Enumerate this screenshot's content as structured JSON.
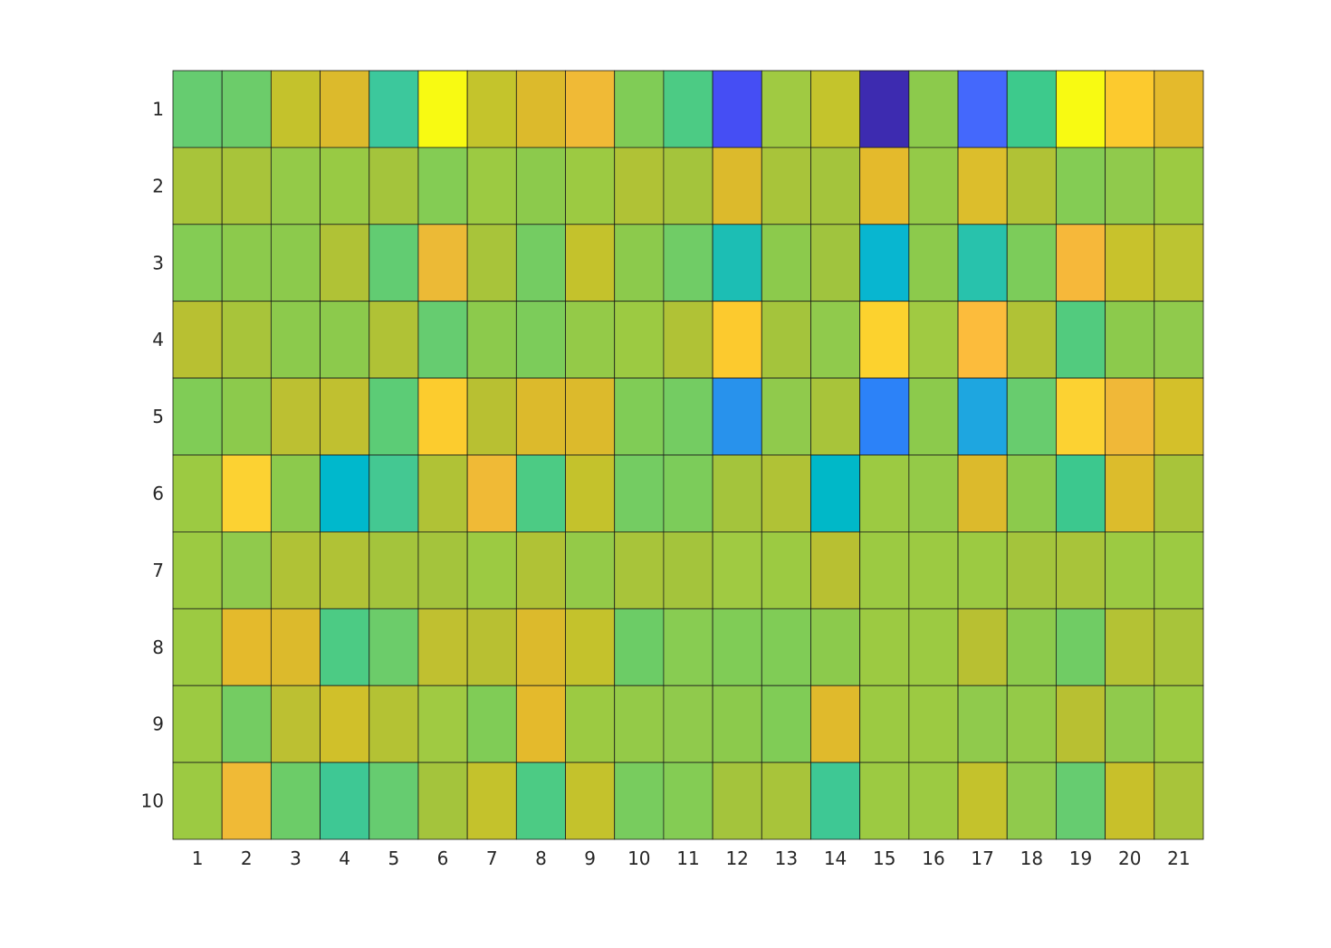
{
  "chart_data": {
    "type": "heatmap",
    "title": "",
    "xlabel": "",
    "ylabel": "",
    "colormap": "parula",
    "x_categories": [
      "1",
      "2",
      "3",
      "4",
      "5",
      "6",
      "7",
      "8",
      "9",
      "10",
      "11",
      "12",
      "13",
      "14",
      "15",
      "16",
      "17",
      "18",
      "19",
      "20",
      "21"
    ],
    "y_categories": [
      "1",
      "2",
      "3",
      "4",
      "5",
      "6",
      "7",
      "8",
      "9",
      "10"
    ],
    "cell_colors": [
      [
        "#66cc70",
        "#6ccc6a",
        "#c4c22c",
        "#dcba2c",
        "#3cc89c",
        "#f8fa12",
        "#c4c42c",
        "#dcba2c",
        "#f0ba36",
        "#80cc56",
        "#4ccb84",
        "#454ef4",
        "#a0ca42",
        "#c4c42c",
        "#3d2bb0",
        "#8cca4c",
        "#4468fc",
        "#3dca8c",
        "#f8fa12",
        "#fcca2e",
        "#e4ba2c"
      ],
      [
        "#a8c43a",
        "#a8c43a",
        "#94ca48",
        "#98ca44",
        "#a4c43c",
        "#84cc54",
        "#9cca42",
        "#8cca4c",
        "#9cca42",
        "#b0c236",
        "#a4c43c",
        "#dcba2c",
        "#a8c43a",
        "#a4c43c",
        "#e4ba2c",
        "#94ca48",
        "#dcbe2c",
        "#b0c236",
        "#84cc54",
        "#90ca4c",
        "#9cca42"
      ],
      [
        "#84cc54",
        "#8cca4c",
        "#8cca4c",
        "#b0c236",
        "#62cc72",
        "#ecba36",
        "#a8c43a",
        "#74cc62",
        "#c4c22c",
        "#8cca4c",
        "#70cc66",
        "#1cbeb4",
        "#8cca4c",
        "#a0c43e",
        "#08b6d0",
        "#8cca4c",
        "#28c2ac",
        "#7ccc5a",
        "#f6b83a",
        "#c8c22c",
        "#bcc432"
      ],
      [
        "#b8c032",
        "#a8c43a",
        "#8cca4c",
        "#8cca4c",
        "#b0c236",
        "#66cc70",
        "#8cca4c",
        "#7ccc5a",
        "#94ca48",
        "#9cca42",
        "#b0c236",
        "#fcca2e",
        "#a4c43c",
        "#90ca4c",
        "#fcd22e",
        "#a0ca42",
        "#fcbc3c",
        "#b0c236",
        "#52cb7e",
        "#8cca4c",
        "#90ca4c"
      ],
      [
        "#80cc56",
        "#8cca4c",
        "#bcc032",
        "#c0c030",
        "#5ccc76",
        "#fccc2e",
        "#b8c032",
        "#dcba2c",
        "#dcba2c",
        "#80cc56",
        "#74cc62",
        "#2892ec",
        "#90ca4c",
        "#a8c43a",
        "#2c82f8",
        "#8cca4c",
        "#1ea6e0",
        "#68cc6e",
        "#fcd232",
        "#f0b838",
        "#d4c02a"
      ],
      [
        "#9cca42",
        "#fcd232",
        "#8cca4c",
        "#00b8cc",
        "#44c892",
        "#b0c236",
        "#f0ba36",
        "#4ccb84",
        "#c4c22c",
        "#74cc62",
        "#7ccc5a",
        "#a4c43c",
        "#b0c236",
        "#00b8c8",
        "#9cca42",
        "#94ca48",
        "#dcba2c",
        "#8cca4c",
        "#3cc88e",
        "#dcbc2c",
        "#a8c43a"
      ],
      [
        "#9cca42",
        "#90ca4c",
        "#b0c236",
        "#b0c236",
        "#a4c43c",
        "#a4c43c",
        "#9cca42",
        "#b0c236",
        "#94ca48",
        "#a8c43a",
        "#a4c43c",
        "#a0ca42",
        "#9cca42",
        "#b8c032",
        "#9cca42",
        "#9cca42",
        "#9cca42",
        "#a4c43c",
        "#a8c43a",
        "#9cca42",
        "#9cca42"
      ],
      [
        "#9cca42",
        "#e4ba2c",
        "#dcba2c",
        "#4ccb84",
        "#6ccc6a",
        "#c0c030",
        "#b8c032",
        "#dcba2c",
        "#c4c22c",
        "#6ccc66",
        "#88cc52",
        "#80cc56",
        "#80cc56",
        "#8cca4c",
        "#9cca42",
        "#9cca42",
        "#b8c032",
        "#8cca4c",
        "#70cc64",
        "#b4c234",
        "#a8c43a"
      ],
      [
        "#9cca42",
        "#74cc62",
        "#bcc032",
        "#d0c02a",
        "#b4c234",
        "#a0ca42",
        "#80cc56",
        "#e4ba2c",
        "#9cca42",
        "#94ca48",
        "#90ca4c",
        "#8cca4c",
        "#80cc56",
        "#e0ba2c",
        "#9cca42",
        "#9cca42",
        "#90ca4c",
        "#94ca48",
        "#b8c032",
        "#90ca4c",
        "#9cca42"
      ],
      [
        "#9cca42",
        "#f0ba36",
        "#6ccc68",
        "#3ec894",
        "#66cc70",
        "#a4c43c",
        "#c4c22c",
        "#4ccb84",
        "#c4c22c",
        "#78cc5e",
        "#84cc54",
        "#a4c43c",
        "#a8c43a",
        "#3ec894",
        "#9cca42",
        "#9cca42",
        "#c4c22c",
        "#90ca4c",
        "#66cc70",
        "#c8c02a",
        "#a8c43a"
      ]
    ],
    "grid": true,
    "legend": "none"
  }
}
